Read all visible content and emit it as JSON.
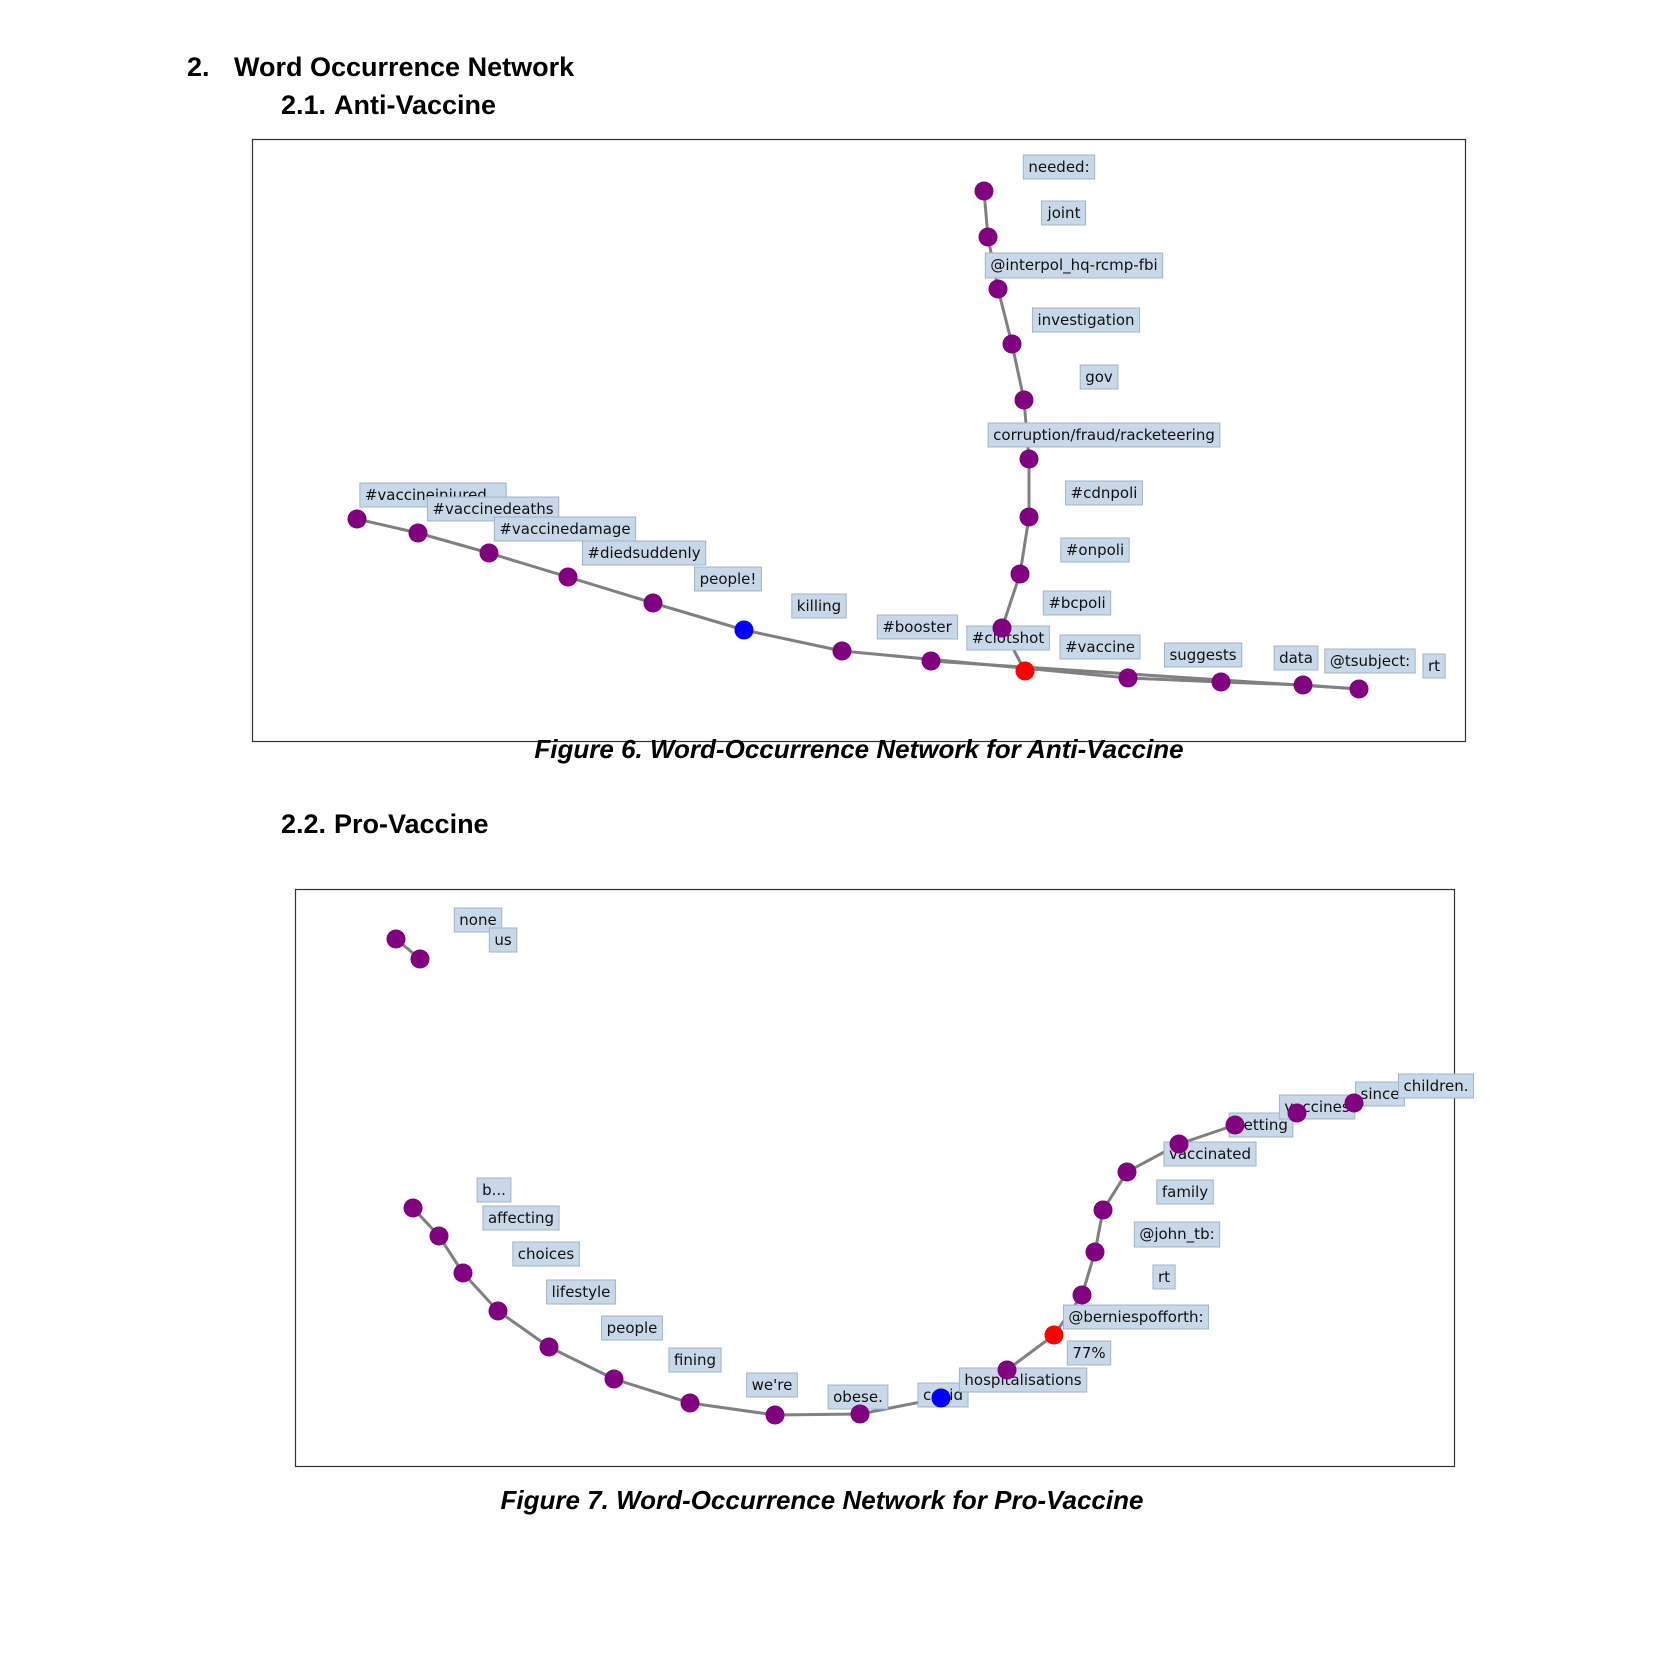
{
  "section": {
    "number": "2.",
    "title": "Word Occurrence Network"
  },
  "anti": {
    "number": "2.1.",
    "title": "Anti-Vaccine",
    "caption": "Figure 6. Word-Occurrence Network for Anti-Vaccine"
  },
  "pro": {
    "number": "2.2.",
    "title": "Pro-Vaccine",
    "caption": "Figure 7. Word-Occurrence Network for Pro-Vaccine"
  },
  "colors": {
    "node": "#800080",
    "start_node": "#0000ff",
    "hub_node": "#ff0000",
    "edge": "#808080",
    "label_bg": "#c8d8e8"
  },
  "networks": [
    {
      "id": "anti",
      "labels": [
        "needed:",
        "joint",
        "@interpol_hq-rcmp-fbi",
        "investigation",
        "gov",
        "corruption/fraud/racketeering",
        "#cdnpoli",
        "#onpoli",
        "#bcpoli",
        "#clotshot",
        "#vaccine",
        "suggests",
        "data",
        "@tsubject:",
        "rt",
        "#vaccineinjured...",
        "#vaccinedeaths",
        "#vaccinedamage",
        "#diedsuddenly",
        "people!",
        "killing",
        "#booster"
      ],
      "chains": [
        [
          "#vaccineinjured...",
          "#vaccinedeaths",
          "#vaccinedamage",
          "#diedsuddenly",
          "people!",
          "killing",
          "#booster",
          "#vaccine",
          "suggests",
          "data",
          "@tsubject:",
          "rt"
        ],
        [
          "needed:",
          "joint",
          "@interpol_hq-rcmp-fbi",
          "investigation",
          "gov",
          "corruption/fraud/racketeering",
          "#cdnpoli",
          "#onpoli",
          "#bcpoli",
          "#clotshot"
        ]
      ]
    },
    {
      "id": "pro",
      "labels": [
        "none",
        "us",
        "b...",
        "affecting",
        "choices",
        "lifestyle",
        "people",
        "fining",
        "we're",
        "obese.",
        "covid",
        "hospitalisations",
        "77%",
        "@berniespofforth:",
        "rt",
        "@john_tb:",
        "family",
        "vaccinated",
        "getting",
        "vaccines",
        "since",
        "children."
      ],
      "chains": [
        [
          "none",
          "us"
        ],
        [
          "b...",
          "affecting",
          "choices",
          "lifestyle",
          "people",
          "fining",
          "we're",
          "obese.",
          "covid",
          "hospitalisations",
          "77%",
          "@berniespofforth:",
          "rt",
          "@john_tb:",
          "family",
          "vaccinated",
          "getting",
          "vaccines",
          "since",
          "children."
        ]
      ]
    }
  ]
}
